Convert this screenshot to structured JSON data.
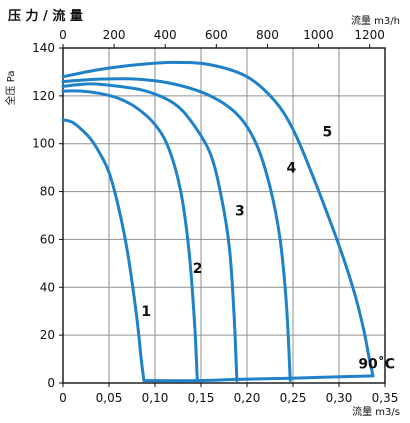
{
  "chart_data": {
    "type": "line",
    "title": "压 力 / 流 量",
    "ylabel": "全压 Pa",
    "xlabel": "流量 m3/s",
    "top_axis_label": "流量 m3/h",
    "ylim": [
      0,
      140
    ],
    "xlim": [
      0,
      0.35
    ],
    "top_axis_lim": [
      0,
      1260
    ],
    "y_ticks": [
      "0",
      "20",
      "40",
      "60",
      "80",
      "100",
      "120",
      "140"
    ],
    "x_ticks": [
      "0",
      "0,05",
      "0,10",
      "0,15",
      "0,20",
      "0,25",
      "0,30",
      "0,35"
    ],
    "top_ticks": [
      "0",
      "200",
      "400",
      "600",
      "800",
      "1000",
      "1200"
    ],
    "grid": true,
    "line_color": "#1f82c8",
    "series": [
      {
        "name": "1",
        "x": [
          0,
          0.01,
          0.02,
          0.03,
          0.04,
          0.05,
          0.06,
          0.07,
          0.08,
          0.085,
          0.088
        ],
        "y": [
          110,
          109,
          106,
          102,
          96,
          88,
          74,
          55,
          28,
          10,
          1
        ]
      },
      {
        "name": "2",
        "x": [
          0,
          0.02,
          0.04,
          0.06,
          0.08,
          0.1,
          0.115,
          0.128,
          0.137,
          0.143,
          0.146
        ],
        "y": [
          122,
          122,
          121,
          119,
          115,
          108,
          98,
          80,
          55,
          25,
          1
        ]
      },
      {
        "name": "3",
        "x": [
          0,
          0.03,
          0.06,
          0.09,
          0.12,
          0.14,
          0.16,
          0.172,
          0.181,
          0.186,
          0.189
        ],
        "y": [
          124,
          125,
          124,
          122,
          117,
          109,
          96,
          78,
          56,
          28,
          1
        ]
      },
      {
        "name": "4",
        "x": [
          0,
          0.04,
          0.08,
          0.12,
          0.16,
          0.19,
          0.21,
          0.225,
          0.236,
          0.243,
          0.247
        ],
        "y": [
          126,
          127,
          127,
          125,
          120,
          112,
          100,
          82,
          60,
          32,
          1
        ]
      },
      {
        "name": "5",
        "x": [
          0,
          0.04,
          0.08,
          0.12,
          0.16,
          0.2,
          0.23,
          0.25,
          0.27,
          0.29,
          0.305,
          0.318,
          0.327,
          0.333,
          0.337
        ],
        "y": [
          128,
          131,
          133,
          134,
          133,
          128,
          118,
          106,
          88,
          68,
          52,
          36,
          22,
          10,
          3
        ]
      },
      {
        "name": "90˚C",
        "x": [
          0.088,
          0.146,
          0.189,
          0.247,
          0.337
        ],
        "y": [
          1,
          1,
          1.5,
          2,
          3
        ]
      }
    ],
    "labels": [
      {
        "text": "1",
        "x": 0.085,
        "y": 28
      },
      {
        "text": "2",
        "x": 0.141,
        "y": 46
      },
      {
        "text": "3",
        "x": 0.187,
        "y": 70
      },
      {
        "text": "4",
        "x": 0.243,
        "y": 88
      },
      {
        "text": "5",
        "x": 0.282,
        "y": 103
      },
      {
        "text": "90˚C",
        "x": 0.321,
        "y": 6
      }
    ]
  }
}
